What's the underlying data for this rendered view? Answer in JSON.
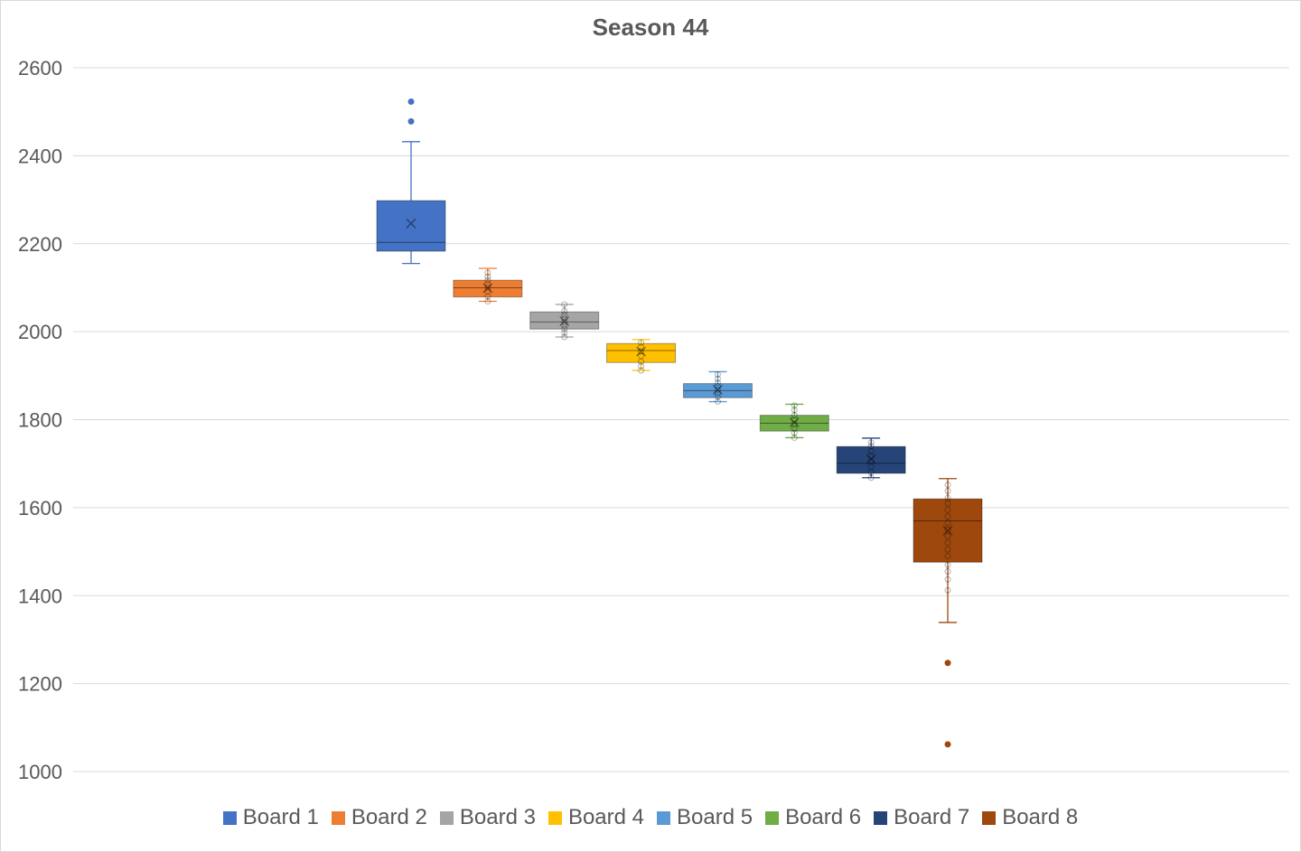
{
  "chart_data": {
    "type": "box",
    "title": "Season 44",
    "xlabel": "",
    "ylabel": "",
    "ylim": [
      1000,
      2600
    ],
    "yticks": [
      "1000",
      "1200",
      "1400",
      "1600",
      "1800",
      "2000",
      "2200",
      "2400",
      "2600"
    ],
    "grid": true,
    "legend_position": "bottom",
    "series": [
      {
        "name": "Board 1",
        "color": "#4472C4",
        "min": 2155,
        "q1": 2183,
        "median": 2203,
        "q3": 2298,
        "max": 2432,
        "mean": 2246,
        "outliers": [
          2478,
          2523
        ],
        "points": []
      },
      {
        "name": "Board 2",
        "color": "#ED7D31",
        "min": 2069,
        "q1": 2079,
        "median": 2100,
        "q3": 2117,
        "max": 2144,
        "mean": 2099,
        "outliers": [],
        "points": [
          2069,
          2080,
          2092,
          2100,
          2108,
          2117,
          2125,
          2134
        ]
      },
      {
        "name": "Board 3",
        "color": "#A5A5A5",
        "min": 1988,
        "q1": 2006,
        "median": 2022,
        "q3": 2045,
        "max": 2062,
        "mean": 2024,
        "outliers": [],
        "points": [
          1988,
          1998,
          2006,
          2014,
          2022,
          2030,
          2038,
          2047,
          2062
        ]
      },
      {
        "name": "Board 4",
        "color": "#FFC000",
        "min": 1912,
        "q1": 1930,
        "median": 1957,
        "q3": 1973,
        "max": 1982,
        "mean": 1955,
        "outliers": [],
        "points": [
          1912,
          1922,
          1932,
          1945,
          1955,
          1965,
          1975
        ]
      },
      {
        "name": "Board 5",
        "color": "#5B9BD5",
        "min": 1841,
        "q1": 1850,
        "median": 1866,
        "q3": 1882,
        "max": 1909,
        "mean": 1868,
        "outliers": [],
        "points": [
          1841,
          1852,
          1860,
          1868,
          1876,
          1884,
          1893,
          1903
        ]
      },
      {
        "name": "Board 6",
        "color": "#70AD47",
        "min": 1759,
        "q1": 1774,
        "median": 1792,
        "q3": 1810,
        "max": 1835,
        "mean": 1794,
        "outliers": [],
        "points": [
          1759,
          1770,
          1780,
          1790,
          1800,
          1810,
          1822,
          1832
        ]
      },
      {
        "name": "Board 7",
        "color": "#264478",
        "min": 1668,
        "q1": 1678,
        "median": 1701,
        "q3": 1739,
        "max": 1758,
        "mean": 1710,
        "outliers": [],
        "points": [
          1668,
          1680,
          1693,
          1705,
          1718,
          1728,
          1740,
          1748
        ]
      },
      {
        "name": "Board 8",
        "color": "#9E480E",
        "min": 1339,
        "q1": 1476,
        "median": 1570,
        "q3": 1620,
        "max": 1666,
        "mean": 1548,
        "outliers": [
          1062,
          1247
        ],
        "points": [
          1412,
          1437,
          1455,
          1470,
          1490,
          1505,
          1520,
          1535,
          1550,
          1565,
          1580,
          1595,
          1610,
          1622,
          1638,
          1652
        ]
      }
    ]
  }
}
